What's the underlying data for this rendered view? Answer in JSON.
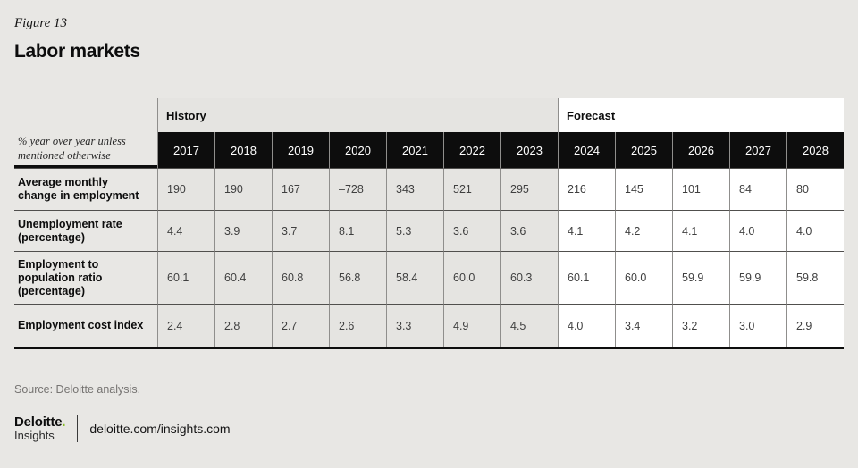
{
  "figure": {
    "label": "Figure 13",
    "title": "Labor markets"
  },
  "table": {
    "unit_note": "% year over year unless mentioned otherwise",
    "history_label": "History",
    "forecast_label": "Forecast",
    "history_years": [
      "2017",
      "2018",
      "2019",
      "2020",
      "2021",
      "2022",
      "2023"
    ],
    "forecast_years": [
      "2024",
      "2025",
      "2026",
      "2027",
      "2028"
    ],
    "rows": [
      {
        "label": "Average monthly change in employment",
        "values": [
          "190",
          "190",
          "167",
          "–728",
          "343",
          "521",
          "295",
          "216",
          "145",
          "101",
          "84",
          "80"
        ]
      },
      {
        "label": "Unemployment rate (percentage)",
        "values": [
          "4.4",
          "3.9",
          "3.7",
          "8.1",
          "5.3",
          "3.6",
          "3.6",
          "4.1",
          "4.2",
          "4.1",
          "4.0",
          "4.0"
        ]
      },
      {
        "label": "Employment to population ratio (percentage)",
        "values": [
          "60.1",
          "60.4",
          "60.8",
          "56.8",
          "58.4",
          "60.0",
          "60.3",
          "60.1",
          "60.0",
          "59.9",
          "59.9",
          "59.8"
        ]
      },
      {
        "label": "Employment cost index",
        "values": [
          "2.4",
          "2.8",
          "2.7",
          "2.6",
          "3.3",
          "4.9",
          "4.5",
          "4.0",
          "3.4",
          "3.2",
          "3.0",
          "2.9"
        ]
      }
    ]
  },
  "footer": {
    "source": "Source: Deloitte analysis.",
    "logo": {
      "brand": "Deloitte",
      "dot": ".",
      "sub": "Insights"
    },
    "url": "deloitte.com/insights.com"
  },
  "colors": {
    "page_bg": "#e8e7e4",
    "header_bg": "#0d0d0d",
    "history_cell_bg": "#e5e4e1",
    "forecast_cell_bg": "#ffffff",
    "grid_line": "#8f8e8c",
    "row_divider": "#504f4d",
    "accent_green": "#86bc25"
  },
  "chart_data": {
    "type": "table",
    "title": "Labor markets",
    "subtitle": "Figure 13",
    "unit_note": "% year over year unless mentioned otherwise",
    "group_labels": [
      "History",
      "Forecast"
    ],
    "history_column_count": 7,
    "categories": [
      "2017",
      "2018",
      "2019",
      "2020",
      "2021",
      "2022",
      "2023",
      "2024",
      "2025",
      "2026",
      "2027",
      "2028"
    ],
    "series": [
      {
        "name": "Average monthly change in employment",
        "values": [
          190,
          190,
          167,
          -728,
          343,
          521,
          295,
          216,
          145,
          101,
          84,
          80
        ]
      },
      {
        "name": "Unemployment rate (percentage)",
        "values": [
          4.4,
          3.9,
          3.7,
          8.1,
          5.3,
          3.6,
          3.6,
          4.1,
          4.2,
          4.1,
          4.0,
          4.0
        ]
      },
      {
        "name": "Employment to population ratio (percentage)",
        "values": [
          60.1,
          60.4,
          60.8,
          56.8,
          58.4,
          60.0,
          60.3,
          60.1,
          60.0,
          59.9,
          59.9,
          59.8
        ]
      },
      {
        "name": "Employment cost index",
        "values": [
          2.4,
          2.8,
          2.7,
          2.6,
          3.3,
          4.9,
          4.5,
          4.0,
          3.4,
          3.2,
          3.0,
          2.9
        ]
      }
    ],
    "source": "Source: Deloitte analysis."
  }
}
